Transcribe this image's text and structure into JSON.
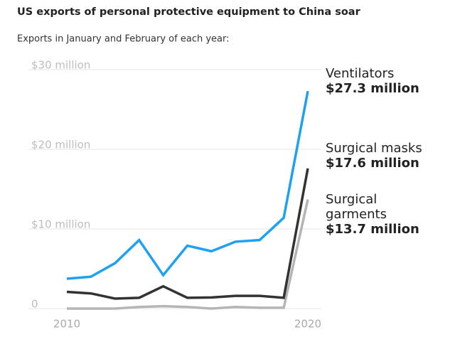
{
  "chart_data": {
    "type": "line",
    "title": "US exports of personal protective equipment to China soar",
    "subtitle": "Exports in January and February of each year:",
    "x": [
      2010,
      2011,
      2012,
      2013,
      2014,
      2015,
      2016,
      2017,
      2018,
      2019,
      2020
    ],
    "xlim": [
      2010,
      2020
    ],
    "xticks": [
      2010,
      2020
    ],
    "ylim": [
      0,
      30
    ],
    "yticks": [
      {
        "value": 0,
        "label": "0"
      },
      {
        "value": 10,
        "label": "$10 million"
      },
      {
        "value": 20,
        "label": "$20 million"
      },
      {
        "value": 30,
        "label": "$30 million"
      }
    ],
    "grid": true,
    "series": [
      {
        "name": "Ventilators",
        "color": "#1ea1f2",
        "values": [
          3.75,
          4.0,
          5.7,
          8.6,
          4.2,
          7.9,
          7.2,
          8.4,
          8.6,
          11.4,
          27.3
        ],
        "value_labels": [
          null,
          null,
          null,
          null,
          null,
          null,
          null,
          null,
          null,
          null,
          "$27.3 million"
        ]
      },
      {
        "name": "Surgical masks",
        "color": "#333333",
        "values": [
          2.1,
          1.9,
          1.25,
          1.35,
          2.8,
          1.35,
          1.4,
          1.6,
          1.6,
          1.35,
          17.6
        ],
        "value_labels": [
          null,
          null,
          null,
          null,
          null,
          null,
          null,
          null,
          null,
          null,
          "$17.6 million"
        ]
      },
      {
        "name": "Surgical garments",
        "color": "#b5b5b5",
        "values": [
          0,
          0,
          0,
          0.2,
          0.3,
          0.2,
          0,
          0.2,
          0.1,
          0.1,
          13.7
        ],
        "value_labels": [
          null,
          null,
          null,
          null,
          null,
          null,
          null,
          null,
          null,
          null,
          "$13.7 million"
        ]
      }
    ]
  }
}
